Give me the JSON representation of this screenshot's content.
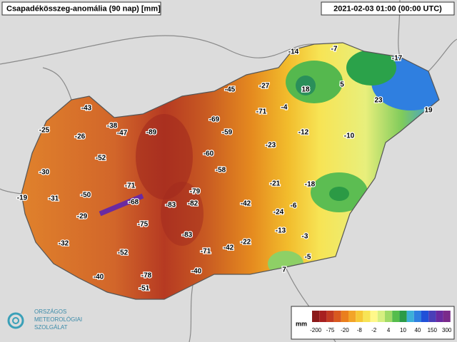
{
  "header": {
    "title": "Csapadékösszeg-anomália (90 nap) [mm]",
    "timestamp": "2021-02-03 01:00 (00:00 UTC)"
  },
  "stations": [
    -14,
    -7,
    -17,
    18,
    5,
    -27,
    -45,
    23,
    19,
    -43,
    -4,
    -71,
    -38,
    -47,
    -89,
    -69,
    -59,
    -12,
    -10,
    -25,
    -26,
    -23,
    -60,
    -52,
    -58,
    -30,
    -21,
    -18,
    -71,
    -79,
    -50,
    -31,
    -19,
    -68,
    -83,
    -82,
    -42,
    -6,
    -24,
    -29,
    -75,
    -13,
    -83,
    -3,
    -32,
    -42,
    -22,
    -71,
    -52,
    -5,
    7,
    -40,
    -78,
    -40,
    -51
  ],
  "legend": {
    "unit": "mm",
    "labels": [
      -200,
      -75,
      -20,
      -8,
      -2,
      4,
      10,
      40,
      150,
      300
    ]
  },
  "logo": {
    "lines": [
      "ORSZÁGOS",
      "METEOROLÓGIAI",
      "SZOLGÁLAT"
    ]
  }
}
